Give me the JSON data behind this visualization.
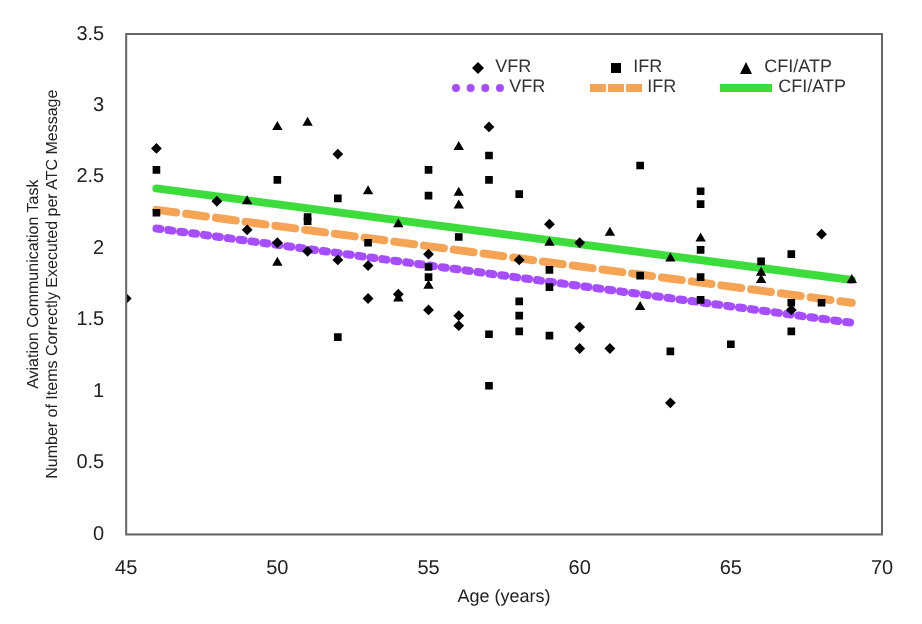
{
  "chart_data": {
    "type": "scatter",
    "xlabel": "Age (years)",
    "ylabel": "Aviation Communication Task\nNumber of Items Correctly Executed per ATC Message",
    "xlim": [
      45,
      70
    ],
    "xticks": [
      45,
      50,
      55,
      60,
      65,
      70
    ],
    "ylim": [
      0,
      3.5
    ],
    "yticks": [
      0,
      0.5,
      1,
      1.5,
      2,
      2.5,
      3,
      3.5
    ],
    "grid": false,
    "legend": "top right",
    "series": [
      {
        "name": "VFR",
        "type": "scatter",
        "marker": "diamond",
        "color": "#000000",
        "x": [
          45,
          46,
          48,
          49,
          50,
          51,
          52,
          52,
          53,
          53,
          54,
          55,
          55,
          56,
          56,
          57,
          58,
          59,
          60,
          60,
          60,
          61,
          63,
          67,
          68
        ],
        "values": [
          1.65,
          2.7,
          2.33,
          2.13,
          2.04,
          1.98,
          2.66,
          1.92,
          1.88,
          1.65,
          1.68,
          1.96,
          1.57,
          1.53,
          1.46,
          2.85,
          1.92,
          2.17,
          2.04,
          1.45,
          1.3,
          1.3,
          0.92,
          1.57,
          2.1
        ]
      },
      {
        "name": "IFR",
        "type": "scatter",
        "marker": "square",
        "color": "#000000",
        "x": [
          46,
          46,
          50,
          51,
          51,
          52,
          52,
          53,
          55,
          55,
          55,
          55,
          56,
          57,
          57,
          57,
          57,
          58,
          58,
          58,
          58,
          59,
          59,
          59,
          62,
          62,
          63,
          64,
          64,
          64,
          64,
          64,
          65,
          66,
          67,
          67,
          67,
          68
        ],
        "values": [
          2.55,
          2.25,
          2.48,
          2.22,
          2.19,
          2.35,
          1.38,
          2.04,
          2.55,
          2.37,
          1.87,
          1.8,
          2.08,
          2.65,
          2.48,
          1.4,
          1.04,
          2.38,
          1.63,
          1.53,
          1.42,
          1.85,
          1.73,
          1.39,
          2.58,
          1.81,
          1.28,
          2.4,
          2.31,
          1.99,
          1.8,
          1.64,
          1.33,
          1.91,
          1.96,
          1.62,
          1.42,
          1.62
        ]
      },
      {
        "name": "CFI/ATP",
        "type": "scatter",
        "marker": "triangle",
        "color": "#000000",
        "x": [
          49,
          50,
          50,
          51,
          53,
          54,
          54,
          55,
          56,
          56,
          56,
          59,
          61,
          62,
          63,
          64,
          66,
          66,
          69
        ],
        "values": [
          2.33,
          2.85,
          1.9,
          2.88,
          2.4,
          2.17,
          1.65,
          1.74,
          2.71,
          2.39,
          2.3,
          2.04,
          2.11,
          1.59,
          1.93,
          2.07,
          1.83,
          1.78,
          1.78
        ]
      },
      {
        "name": "VFR",
        "type": "line",
        "line_style": "dotted",
        "color": "#a64dff",
        "x": [
          46,
          69
        ],
        "values": [
          2.14,
          1.48
        ]
      },
      {
        "name": "IFR",
        "type": "line",
        "line_style": "dashed",
        "color": "#f5a455",
        "x": [
          46,
          69
        ],
        "values": [
          2.27,
          1.62
        ]
      },
      {
        "name": "CFI/ATP",
        "type": "line",
        "line_style": "solid",
        "color": "#3ddc3d",
        "x": [
          46,
          69
        ],
        "values": [
          2.42,
          1.78
        ]
      }
    ]
  }
}
